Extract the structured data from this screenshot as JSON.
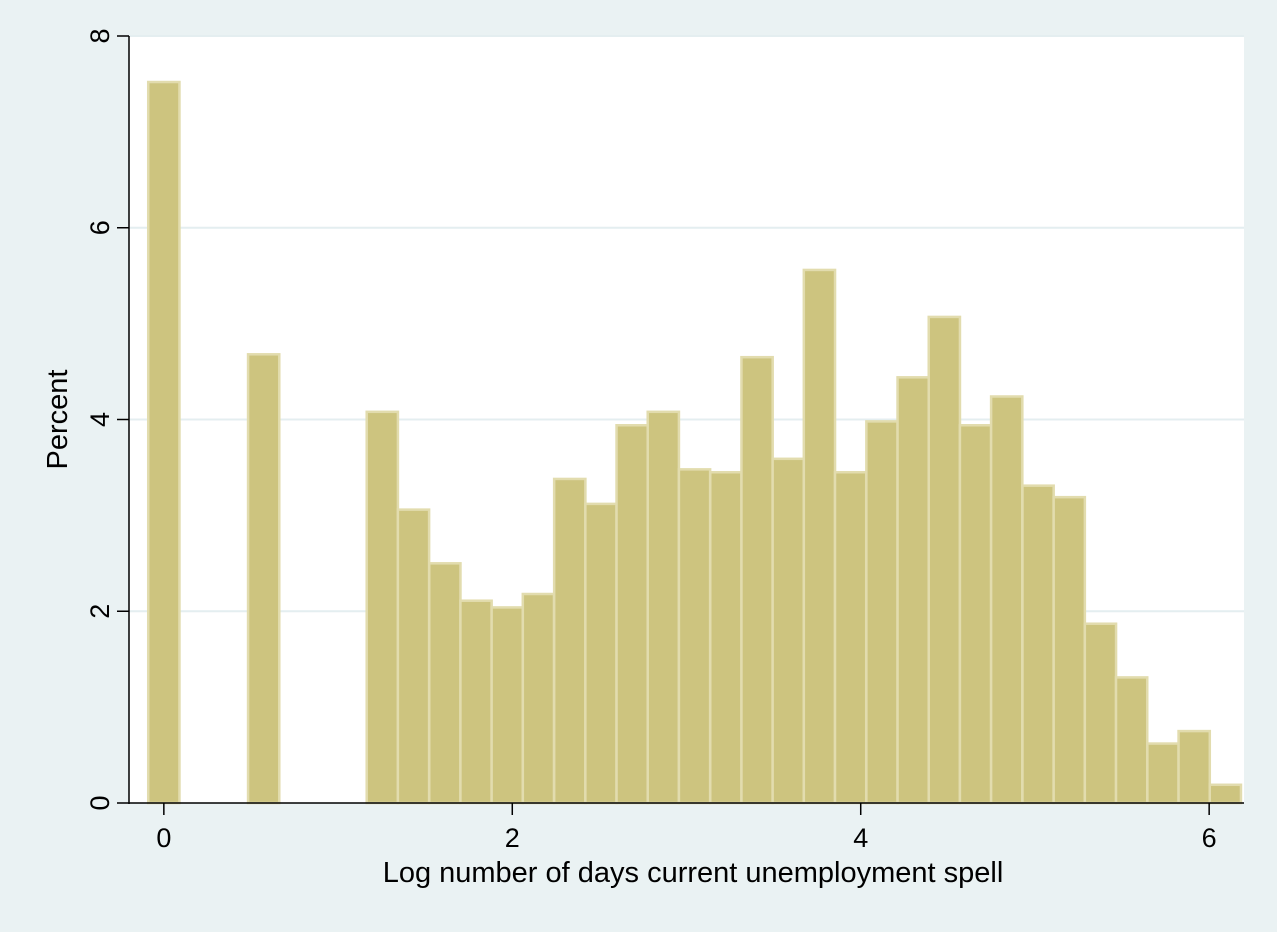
{
  "chart_data": {
    "type": "bar",
    "title": "",
    "xlabel": "Log number of days current unemployment spell",
    "ylabel": "Percent",
    "xlim": [
      -0.2,
      6.2
    ],
    "ylim": [
      0,
      8
    ],
    "x_ticks": [
      0,
      2,
      4,
      6
    ],
    "y_ticks": [
      0,
      2,
      4,
      6,
      8
    ],
    "bar_width": 0.1792,
    "grid": true,
    "legend": "none",
    "colors": {
      "bar_fill": "#cdc47f",
      "bar_edge": "#e2dcae",
      "plot_bg": "#ffffff",
      "outer_bg": "#eaf2f3",
      "grid": "#e4eef0",
      "axis": "#000000"
    },
    "bars": [
      {
        "x": 0.0,
        "value": 7.52
      },
      {
        "x": 0.573,
        "value": 4.68
      },
      {
        "x": 1.254,
        "value": 4.08
      },
      {
        "x": 1.433,
        "value": 3.06
      },
      {
        "x": 1.613,
        "value": 2.5
      },
      {
        "x": 1.792,
        "value": 2.11
      },
      {
        "x": 1.971,
        "value": 2.04
      },
      {
        "x": 2.15,
        "value": 2.18
      },
      {
        "x": 2.33,
        "value": 3.38
      },
      {
        "x": 2.509,
        "value": 3.12
      },
      {
        "x": 2.688,
        "value": 3.94
      },
      {
        "x": 2.867,
        "value": 4.08
      },
      {
        "x": 3.046,
        "value": 3.48
      },
      {
        "x": 3.226,
        "value": 3.45
      },
      {
        "x": 3.405,
        "value": 4.65
      },
      {
        "x": 3.584,
        "value": 3.59
      },
      {
        "x": 3.763,
        "value": 5.56
      },
      {
        "x": 3.942,
        "value": 3.45
      },
      {
        "x": 4.122,
        "value": 3.98
      },
      {
        "x": 4.301,
        "value": 4.44
      },
      {
        "x": 4.48,
        "value": 5.07
      },
      {
        "x": 4.659,
        "value": 3.94
      },
      {
        "x": 4.838,
        "value": 4.24
      },
      {
        "x": 5.018,
        "value": 3.31
      },
      {
        "x": 5.197,
        "value": 3.19
      },
      {
        "x": 5.376,
        "value": 1.87
      },
      {
        "x": 5.555,
        "value": 1.31
      },
      {
        "x": 5.735,
        "value": 0.62
      },
      {
        "x": 5.914,
        "value": 0.75
      },
      {
        "x": 6.093,
        "value": 0.19
      }
    ]
  }
}
